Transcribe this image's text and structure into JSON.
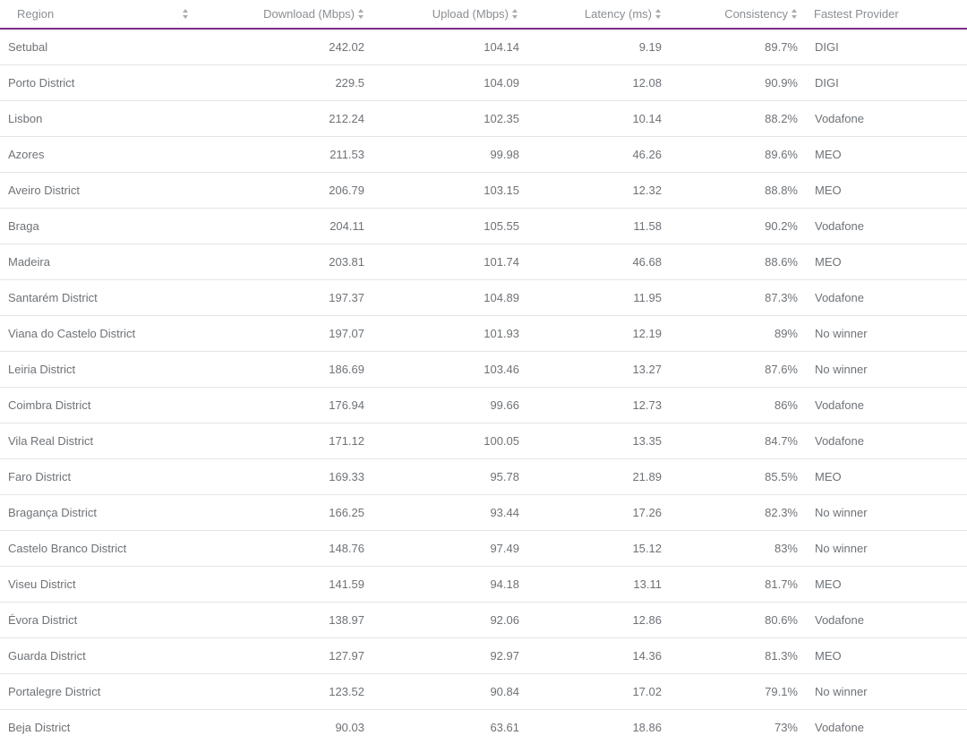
{
  "table": {
    "columns": {
      "region": "Region",
      "download": "Download (Mbps)",
      "upload": "Upload (Mbps)",
      "latency": "Latency (ms)",
      "consistency": "Consistency",
      "provider": "Fastest Provider"
    },
    "sort_icon": "sort-updown-icon",
    "header_border_color": "#7a2d88",
    "rows": [
      {
        "region": "Setubal",
        "download": "242.02",
        "upload": "104.14",
        "latency": "9.19",
        "consistency": "89.7%",
        "provider": "DIGI"
      },
      {
        "region": "Porto District",
        "download": "229.5",
        "upload": "104.09",
        "latency": "12.08",
        "consistency": "90.9%",
        "provider": "DIGI"
      },
      {
        "region": "Lisbon",
        "download": "212.24",
        "upload": "102.35",
        "latency": "10.14",
        "consistency": "88.2%",
        "provider": "Vodafone"
      },
      {
        "region": "Azores",
        "download": "211.53",
        "upload": "99.98",
        "latency": "46.26",
        "consistency": "89.6%",
        "provider": "MEO"
      },
      {
        "region": "Aveiro District",
        "download": "206.79",
        "upload": "103.15",
        "latency": "12.32",
        "consistency": "88.8%",
        "provider": "MEO"
      },
      {
        "region": "Braga",
        "download": "204.11",
        "upload": "105.55",
        "latency": "11.58",
        "consistency": "90.2%",
        "provider": "Vodafone"
      },
      {
        "region": "Madeira",
        "download": "203.81",
        "upload": "101.74",
        "latency": "46.68",
        "consistency": "88.6%",
        "provider": "MEO"
      },
      {
        "region": "Santarém District",
        "download": "197.37",
        "upload": "104.89",
        "latency": "11.95",
        "consistency": "87.3%",
        "provider": "Vodafone"
      },
      {
        "region": "Viana do Castelo District",
        "download": "197.07",
        "upload": "101.93",
        "latency": "12.19",
        "consistency": "89%",
        "provider": "No winner"
      },
      {
        "region": "Leiria District",
        "download": "186.69",
        "upload": "103.46",
        "latency": "13.27",
        "consistency": "87.6%",
        "provider": "No winner"
      },
      {
        "region": "Coimbra District",
        "download": "176.94",
        "upload": "99.66",
        "latency": "12.73",
        "consistency": "86%",
        "provider": "Vodafone"
      },
      {
        "region": "Vila Real District",
        "download": "171.12",
        "upload": "100.05",
        "latency": "13.35",
        "consistency": "84.7%",
        "provider": "Vodafone"
      },
      {
        "region": "Faro District",
        "download": "169.33",
        "upload": "95.78",
        "latency": "21.89",
        "consistency": "85.5%",
        "provider": "MEO"
      },
      {
        "region": "Bragança District",
        "download": "166.25",
        "upload": "93.44",
        "latency": "17.26",
        "consistency": "82.3%",
        "provider": "No winner"
      },
      {
        "region": "Castelo Branco District",
        "download": "148.76",
        "upload": "97.49",
        "latency": "15.12",
        "consistency": "83%",
        "provider": "No winner"
      },
      {
        "region": "Viseu District",
        "download": "141.59",
        "upload": "94.18",
        "latency": "13.11",
        "consistency": "81.7%",
        "provider": "MEO"
      },
      {
        "region": "Évora District",
        "download": "138.97",
        "upload": "92.06",
        "latency": "12.86",
        "consistency": "80.6%",
        "provider": "Vodafone"
      },
      {
        "region": "Guarda District",
        "download": "127.97",
        "upload": "92.97",
        "latency": "14.36",
        "consistency": "81.3%",
        "provider": "MEO"
      },
      {
        "region": "Portalegre District",
        "download": "123.52",
        "upload": "90.84",
        "latency": "17.02",
        "consistency": "79.1%",
        "provider": "No winner"
      },
      {
        "region": "Beja District",
        "download": "90.03",
        "upload": "63.61",
        "latency": "18.86",
        "consistency": "73%",
        "provider": "Vodafone"
      }
    ]
  }
}
